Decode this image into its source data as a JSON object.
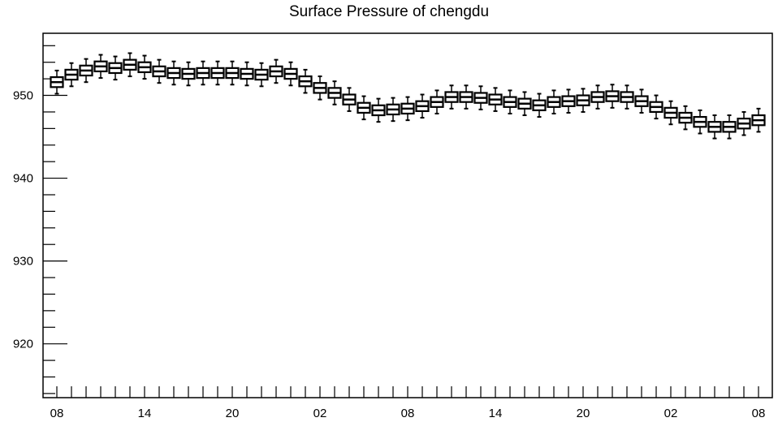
{
  "chart_data": {
    "type": "box",
    "title": "Surface Pressure of chengdu",
    "xlabel": "",
    "ylabel": "",
    "ylim": [
      913.5,
      957.5
    ],
    "y_ticks": [
      920,
      930,
      940,
      950
    ],
    "y_tick_labels": [
      "920",
      "930",
      "940",
      "950"
    ],
    "x_tick_labels": [
      "08",
      "14",
      "20",
      "02",
      "08",
      "14",
      "20",
      "02",
      "08"
    ],
    "x_label_every": 6,
    "grid": false,
    "series": [
      {
        "medians": [
          951.6,
          952.5,
          953.0,
          953.5,
          953.3,
          953.7,
          953.4,
          952.9,
          952.7,
          952.6,
          952.7,
          952.7,
          952.7,
          952.6,
          952.5,
          952.9,
          952.6,
          951.7,
          950.9,
          950.3,
          949.5,
          948.5,
          948.2,
          948.3,
          948.4,
          948.7,
          949.2,
          949.8,
          949.8,
          949.7,
          949.5,
          949.2,
          949.0,
          948.8,
          949.2,
          949.3,
          949.4,
          949.8,
          949.9,
          949.8,
          949.3,
          948.6,
          947.9,
          947.3,
          946.8,
          946.2,
          946.2,
          946.6,
          947.0
        ],
        "box_half_height": 0.6,
        "whisker_half_height": 1.4
      }
    ],
    "colors": {
      "box": "#000000",
      "box_fill": "#ffffff",
      "frame": "#000000",
      "background": "#ffffff"
    }
  }
}
